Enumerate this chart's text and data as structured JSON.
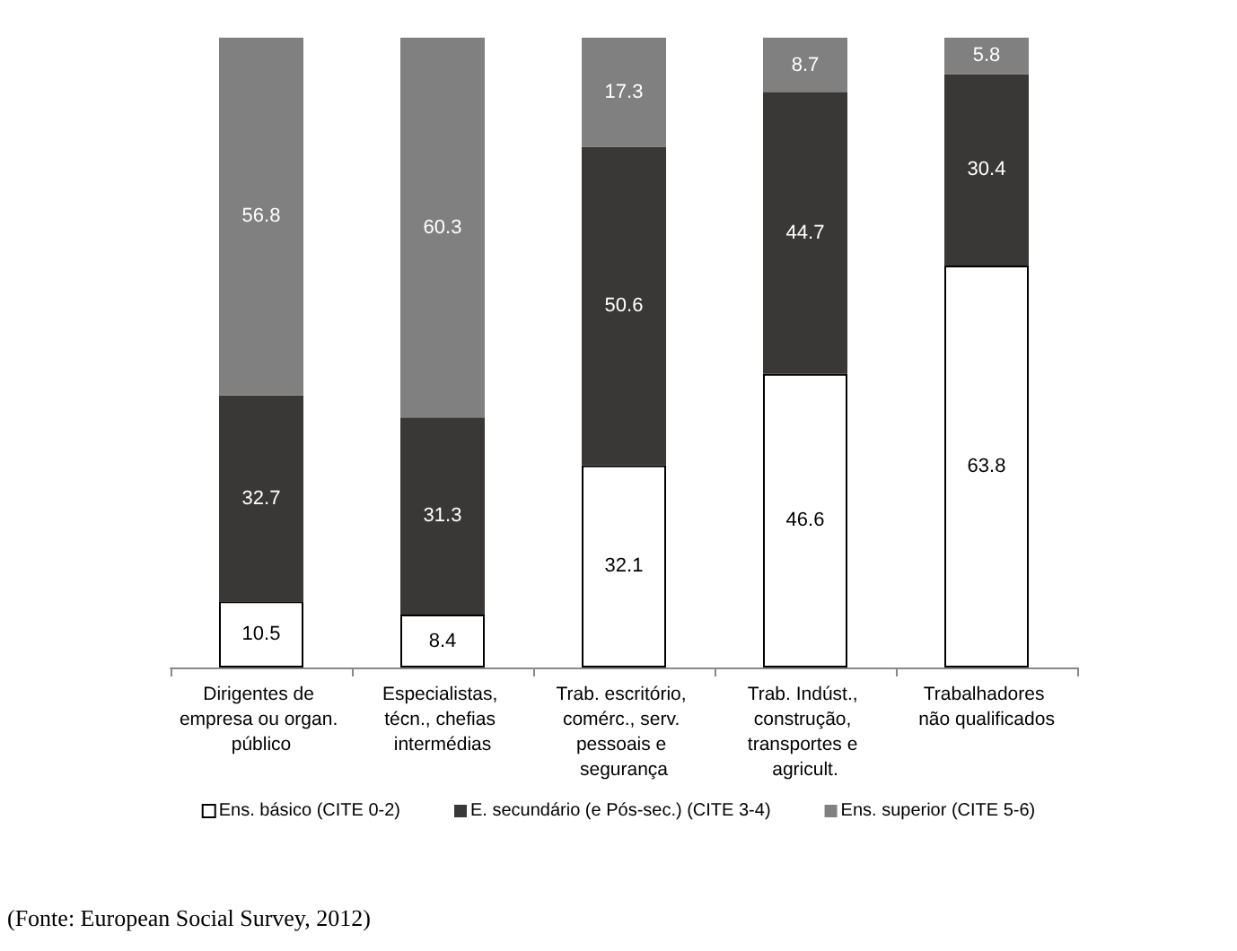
{
  "chart_data": {
    "type": "bar",
    "stacked": true,
    "categories": [
      "Dirigentes de empresa ou organ. público",
      "Especialistas, técn., chefias intermédias",
      "Trab. escritório, comérc., serv. pessoais e segurança",
      "Trab. Indúst., construção, transportes e agricult.",
      "Trabalhadores não qualificados"
    ],
    "series": [
      {
        "name": "Ens. básico (CITE 0-2)",
        "color": "#ffffff",
        "values": [
          10.5,
          8.4,
          32.1,
          46.6,
          63.8
        ]
      },
      {
        "name": "E. secundário (e Pós-sec.) (CITE 3-4)",
        "color": "#3a3837",
        "values": [
          32.7,
          31.3,
          50.6,
          44.7,
          30.4
        ]
      },
      {
        "name": "Ens. superior (CITE 5-6)",
        "color": "#808080",
        "values": [
          56.8,
          60.3,
          17.3,
          8.7,
          5.8
        ]
      }
    ],
    "ylim": [
      0,
      100
    ],
    "tick_labels": "x",
    "data_labels": true,
    "legend": "bottom",
    "annotations": [
      "(Fonte: European Social Survey, 2012)"
    ]
  }
}
